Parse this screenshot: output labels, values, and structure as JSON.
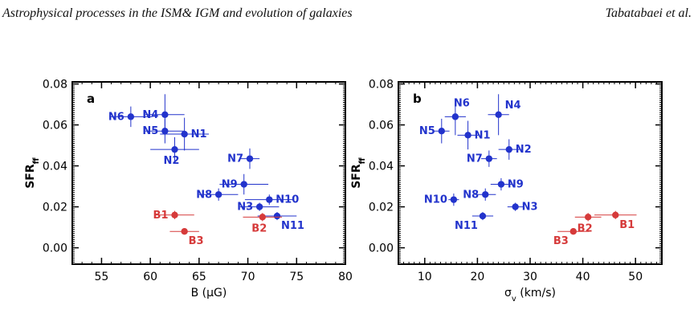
{
  "header": {
    "left_text": "Astrophysical processes in the ISM& IGM and evolution of galaxies",
    "right_text": "Tabatabaei et al."
  },
  "colors": {
    "blue": "#2233cc",
    "red": "#d63a3a",
    "axis": "#000000"
  },
  "chart_data": [
    {
      "type": "scatter",
      "panel_label": "a",
      "xlabel": "B (μG)",
      "ylabel": "SFR",
      "ylabel_sub": "ff",
      "xlim": [
        52,
        80
      ],
      "ylim": [
        -0.008,
        0.081
      ],
      "xticks": [
        55,
        60,
        65,
        70,
        75,
        80
      ],
      "yticks": [
        0.0,
        0.02,
        0.04,
        0.06,
        0.08
      ],
      "ytick_labels": [
        "0.00",
        "0.02",
        "0.04",
        "0.06",
        "0.08"
      ],
      "points": [
        {
          "label": "N6",
          "x": 58.0,
          "y": 0.064,
          "xerr": 2.2,
          "yerr": 0.005,
          "color": "blue",
          "lpos": "left"
        },
        {
          "label": "N4",
          "x": 61.5,
          "y": 0.065,
          "xerr": 2.0,
          "yerr": 0.01,
          "color": "blue",
          "lpos": "left"
        },
        {
          "label": "N5",
          "x": 61.5,
          "y": 0.057,
          "xerr": 2.0,
          "yerr": 0.006,
          "color": "blue",
          "lpos": "left"
        },
        {
          "label": "N1",
          "x": 63.5,
          "y": 0.0555,
          "xerr": 2.5,
          "yerr": 0.008,
          "color": "blue",
          "lpos": "right"
        },
        {
          "label": "N2",
          "x": 62.5,
          "y": 0.048,
          "xerr": 2.5,
          "yerr": 0.006,
          "color": "blue",
          "lpos": "below"
        },
        {
          "label": "N7",
          "x": 70.2,
          "y": 0.0435,
          "xerr": 1.0,
          "yerr": 0.005,
          "color": "blue",
          "lpos": "left"
        },
        {
          "label": "N9",
          "x": 69.6,
          "y": 0.031,
          "xerr": 2.5,
          "yerr": 0.005,
          "color": "blue",
          "lpos": "left"
        },
        {
          "label": "N8",
          "x": 67.0,
          "y": 0.026,
          "xerr": 2.0,
          "yerr": 0.003,
          "color": "blue",
          "lpos": "left"
        },
        {
          "label": "N10",
          "x": 72.2,
          "y": 0.0235,
          "xerr": 2.5,
          "yerr": 0.0025,
          "color": "blue",
          "lpos": "right"
        },
        {
          "label": "N3",
          "x": 71.2,
          "y": 0.02,
          "xerr": 2.0,
          "yerr": 0.002,
          "color": "blue",
          "lpos": "left"
        },
        {
          "label": "N11",
          "x": 73.0,
          "y": 0.0155,
          "xerr": 2.0,
          "yerr": 0.002,
          "color": "blue",
          "lpos": "belowright"
        },
        {
          "label": "B1",
          "x": 62.5,
          "y": 0.016,
          "xerr": 2.0,
          "yerr": 0.002,
          "color": "red",
          "lpos": "left"
        },
        {
          "label": "B2",
          "x": 71.5,
          "y": 0.015,
          "xerr": 2.0,
          "yerr": 0.002,
          "color": "red",
          "lpos": "below"
        },
        {
          "label": "B3",
          "x": 63.5,
          "y": 0.008,
          "xerr": 1.5,
          "yerr": 0.0015,
          "color": "red",
          "lpos": "belowright"
        }
      ]
    },
    {
      "type": "scatter",
      "panel_label": "b",
      "xlabel": "σ",
      "xlabel_sub": "v",
      "xlabel_suffix": " (km/s)",
      "ylabel": "SFR",
      "ylabel_sub": "ff",
      "xlim": [
        5,
        55
      ],
      "ylim": [
        -0.008,
        0.081
      ],
      "xticks": [
        10,
        20,
        30,
        40,
        50
      ],
      "yticks": [
        0.0,
        0.02,
        0.04,
        0.06,
        0.08
      ],
      "ytick_labels": [
        "0.00",
        "0.02",
        "0.04",
        "0.06",
        "0.08"
      ],
      "points": [
        {
          "label": "N6",
          "x": 15.8,
          "y": 0.064,
          "xerr": 2.0,
          "yerr": 0.009,
          "color": "blue",
          "lpos": "above"
        },
        {
          "label": "N4",
          "x": 24.0,
          "y": 0.065,
          "xerr": 2.0,
          "yerr": 0.01,
          "color": "blue",
          "lpos": "aboveright"
        },
        {
          "label": "N5",
          "x": 13.2,
          "y": 0.057,
          "xerr": 1.5,
          "yerr": 0.006,
          "color": "blue",
          "lpos": "left"
        },
        {
          "label": "N1",
          "x": 18.2,
          "y": 0.055,
          "xerr": 2.0,
          "yerr": 0.007,
          "color": "blue",
          "lpos": "right"
        },
        {
          "label": "N2",
          "x": 26.0,
          "y": 0.048,
          "xerr": 2.0,
          "yerr": 0.005,
          "color": "blue",
          "lpos": "right"
        },
        {
          "label": "N7",
          "x": 22.2,
          "y": 0.0435,
          "xerr": 1.5,
          "yerr": 0.004,
          "color": "blue",
          "lpos": "left"
        },
        {
          "label": "N9",
          "x": 24.5,
          "y": 0.031,
          "xerr": 2.0,
          "yerr": 0.003,
          "color": "blue",
          "lpos": "right"
        },
        {
          "label": "N8",
          "x": 21.5,
          "y": 0.026,
          "xerr": 2.0,
          "yerr": 0.003,
          "color": "blue",
          "lpos": "left"
        },
        {
          "label": "N10",
          "x": 15.5,
          "y": 0.0235,
          "xerr": 1.0,
          "yerr": 0.003,
          "color": "blue",
          "lpos": "left"
        },
        {
          "label": "N3",
          "x": 27.2,
          "y": 0.02,
          "xerr": 1.5,
          "yerr": 0.002,
          "color": "blue",
          "lpos": "right"
        },
        {
          "label": "N11",
          "x": 21.0,
          "y": 0.0155,
          "xerr": 2.0,
          "yerr": 0.002,
          "color": "blue",
          "lpos": "belowleft"
        },
        {
          "label": "B1",
          "x": 46.2,
          "y": 0.016,
          "xerr": 4.0,
          "yerr": 0.002,
          "color": "red",
          "lpos": "belowright"
        },
        {
          "label": "B2",
          "x": 41.0,
          "y": 0.015,
          "xerr": 2.5,
          "yerr": 0.002,
          "color": "red",
          "lpos": "below"
        },
        {
          "label": "B3",
          "x": 38.2,
          "y": 0.008,
          "xerr": 3.0,
          "yerr": 0.0015,
          "color": "red",
          "lpos": "belowleft"
        }
      ]
    }
  ]
}
